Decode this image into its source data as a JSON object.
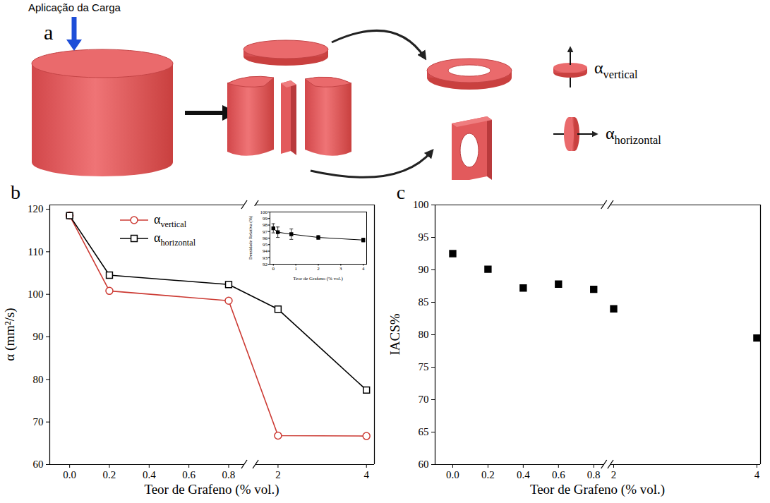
{
  "diagram": {
    "panel": "a",
    "load_label": "Aplicação da Carga",
    "vertical_label": "αvertical",
    "horizontal_label": "αhorizontal"
  },
  "chart_data": [
    {
      "panel": "b",
      "type": "line",
      "x_label": "Teor de Grafeno (% vol.)",
      "y_label": "α (mm²/s)",
      "x": [
        0,
        0.2,
        0.8,
        2,
        4
      ],
      "series": [
        {
          "name": "αvertical",
          "color": "#cc3a33",
          "marker": "circle-open",
          "line_style": "solid",
          "values": [
            118.5,
            100.8,
            98.5,
            66.8,
            66.7
          ]
        },
        {
          "name": "αhorizontal",
          "color": "#000000",
          "marker": "square-open",
          "line_style": "solid",
          "values": [
            118.5,
            104.5,
            102.3,
            96.5,
            77.5
          ]
        }
      ],
      "xlim": [
        -0.1,
        4.18
      ],
      "x_break": [
        0.88,
        1.5
      ],
      "xticks": [
        {
          "value": 0,
          "label": "0.0"
        },
        0.2,
        0.4,
        0.6,
        0.8,
        2,
        4
      ],
      "ylim": [
        60,
        121
      ],
      "yticks": [
        60,
        70,
        80,
        90,
        100,
        110,
        120
      ],
      "grid": false,
      "legend": "top-left",
      "inset": {
        "type": "line",
        "x_label": "Teor de Grafeno (% vol.)",
        "y_label": "Densidade Relativa (%)",
        "x": [
          0,
          0.2,
          0.8,
          2,
          4
        ],
        "values": [
          97.5,
          96.9,
          96.6,
          96.1,
          95.7
        ],
        "errors": [
          0.7,
          0.8,
          0.8,
          0.3,
          0.3
        ],
        "color": "#000000",
        "marker": "square",
        "line_style": "solid",
        "xlim": [
          -0.15,
          4.15
        ],
        "xticks": [
          0,
          1,
          2,
          3,
          4
        ],
        "ylim": [
          92,
          100
        ],
        "yticks": [
          92,
          93,
          94,
          95,
          96,
          97,
          98,
          99,
          100
        ],
        "grid": false
      }
    },
    {
      "panel": "c",
      "type": "scatter",
      "x_label": "Teor de Grafeno (% vol.)",
      "y_label": "IACS%",
      "x": [
        0,
        0.2,
        0.4,
        0.6,
        0.8,
        2,
        4
      ],
      "values": [
        92.5,
        90.1,
        87.2,
        87.8,
        87.0,
        84.0,
        79.5
      ],
      "color": "#000000",
      "marker": "square",
      "xlim": [
        -0.1,
        4.05
      ],
      "x_break": [
        0.86,
        1.96
      ],
      "xticks": [
        {
          "value": 0,
          "label": "0.0"
        },
        0.2,
        0.4,
        0.6,
        0.8,
        2,
        4
      ],
      "ylim": [
        60,
        100
      ],
      "yticks": [
        60,
        65,
        70,
        75,
        80,
        85,
        90,
        95,
        100
      ],
      "grid": false
    }
  ]
}
